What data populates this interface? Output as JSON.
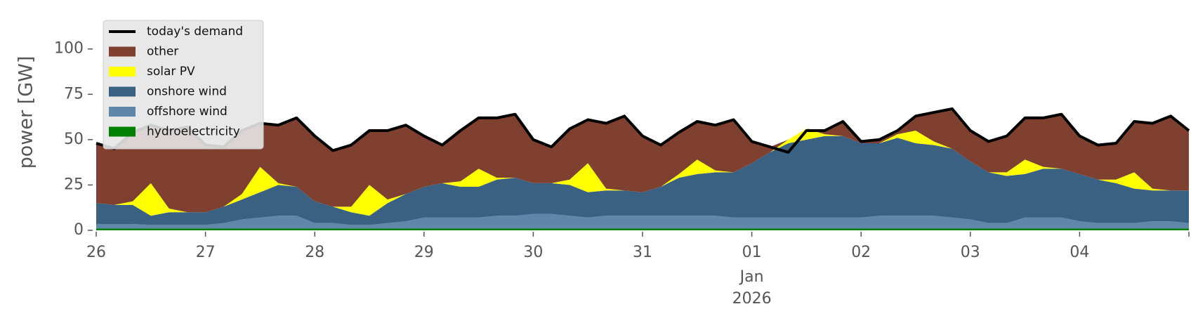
{
  "chart_data": {
    "type": "area",
    "ylabel": "power [GW]",
    "x": [
      0,
      4,
      8,
      12,
      16,
      20,
      24,
      28,
      32,
      36,
      40,
      44,
      48,
      52,
      56,
      60,
      64,
      68,
      72,
      76,
      80,
      84,
      88,
      92,
      96,
      100,
      104,
      108,
      112,
      116,
      120,
      124,
      128,
      132,
      136,
      140,
      144,
      148,
      152,
      156,
      160,
      164,
      168,
      172,
      176,
      180,
      184,
      188,
      192,
      196,
      200,
      204,
      208,
      212,
      216,
      220,
      224,
      228,
      232,
      236,
      240
    ],
    "xlim": [
      0,
      240
    ],
    "xticks": [
      {
        "value": 0,
        "label": "26"
      },
      {
        "value": 24,
        "label": "27"
      },
      {
        "value": 48,
        "label": "28"
      },
      {
        "value": 72,
        "label": "29"
      },
      {
        "value": 96,
        "label": "30"
      },
      {
        "value": 120,
        "label": "31"
      },
      {
        "value": 144,
        "label": "01"
      },
      {
        "value": 168,
        "label": "02"
      },
      {
        "value": 192,
        "label": "03"
      },
      {
        "value": 216,
        "label": "04"
      }
    ],
    "x_month_label": "Jan",
    "x_year_label": "2026",
    "ylim": [
      0,
      115
    ],
    "yticks": [
      0,
      25,
      50,
      75,
      100
    ],
    "legend": "upper left",
    "series": [
      {
        "name": "today's demand",
        "kind": "line",
        "color": "#000000",
        "values": [
          48,
          45,
          54,
          58,
          55,
          57,
          47,
          46,
          55,
          59,
          58,
          62,
          52,
          44,
          47,
          55,
          55,
          58,
          52,
          47,
          55,
          62,
          62,
          64,
          50,
          46,
          56,
          61,
          59,
          63,
          52,
          47,
          54,
          60,
          58,
          61,
          49,
          46,
          43,
          55,
          55,
          60,
          49,
          50,
          55,
          63,
          65,
          67,
          55,
          49,
          52,
          62,
          62,
          64,
          52,
          47,
          48,
          60,
          59,
          63,
          55
        ]
      },
      {
        "name": "other",
        "kind": "area",
        "color": "#804030",
        "values": [
          33,
          31,
          38,
          32,
          43,
          47,
          37,
          33,
          35,
          24,
          32,
          38,
          36,
          31,
          34,
          30,
          38,
          38,
          28,
          21,
          28,
          28,
          33,
          35,
          24,
          20,
          28,
          24,
          36,
          41,
          31,
          23,
          23,
          21,
          25,
          29,
          12,
          3,
          0,
          0,
          2,
          8,
          1,
          2,
          2,
          8,
          16,
          22,
          17,
          17,
          20,
          23,
          27,
          30,
          21,
          19,
          20,
          28,
          36,
          41,
          33
        ]
      },
      {
        "name": "solar PV",
        "kind": "area",
        "color": "#ffff00",
        "values": [
          0,
          0,
          2,
          18,
          2,
          0,
          0,
          0,
          3,
          14,
          1,
          0,
          0,
          0,
          3,
          17,
          2,
          0,
          0,
          0,
          3,
          10,
          1,
          0,
          0,
          0,
          3,
          16,
          1,
          0,
          0,
          0,
          2,
          8,
          1,
          0,
          0,
          0,
          2,
          6,
          1,
          0,
          0,
          0,
          2,
          7,
          2,
          0,
          0,
          0,
          2,
          8,
          1,
          0,
          0,
          0,
          2,
          9,
          1,
          0,
          0
        ]
      },
      {
        "name": "onshore wind",
        "kind": "area",
        "color": "#3b6182",
        "values": [
          11.5,
          10.5,
          10.5,
          5,
          7,
          7,
          7,
          9,
          11,
          14,
          17,
          16,
          12,
          9,
          7,
          5,
          11,
          15,
          17,
          19,
          17,
          17,
          20,
          21,
          17,
          17,
          17,
          14,
          14,
          14,
          13,
          16,
          21,
          23,
          24,
          25,
          30,
          36,
          41,
          43,
          45,
          45,
          41,
          40,
          43,
          40,
          39,
          38,
          32,
          28,
          26,
          24,
          27,
          27,
          26,
          24,
          22,
          19,
          17,
          17,
          18
        ]
      },
      {
        "name": "offshore wind",
        "kind": "area",
        "color": "#5f87aa",
        "values": [
          2.5,
          2.5,
          2.5,
          2,
          2,
          2,
          2,
          3,
          5,
          6,
          7,
          7,
          3,
          3,
          2,
          2,
          3,
          4,
          6,
          6,
          6,
          6,
          7,
          7,
          8,
          8,
          7,
          6,
          7,
          7,
          7,
          7,
          7,
          7,
          7,
          6,
          6,
          6,
          6,
          6,
          6,
          6,
          6,
          7,
          7,
          7,
          7,
          6,
          5,
          3,
          3,
          6,
          6,
          6,
          4,
          3,
          3,
          3,
          4,
          4,
          3
        ]
      },
      {
        "name": "hydroelectricity",
        "kind": "area",
        "color": "#008000",
        "values": [
          1,
          1,
          1,
          1,
          1,
          1,
          1,
          1,
          1,
          1,
          1,
          1,
          1,
          1,
          1,
          1,
          1,
          1,
          1,
          1,
          1,
          1,
          1,
          1,
          1,
          1,
          1,
          1,
          1,
          1,
          1,
          1,
          1,
          1,
          1,
          1,
          1,
          1,
          1,
          1,
          1,
          1,
          1,
          1,
          1,
          1,
          1,
          1,
          1,
          1,
          1,
          1,
          1,
          1,
          1,
          1,
          1,
          1,
          1,
          1,
          1
        ]
      }
    ]
  }
}
